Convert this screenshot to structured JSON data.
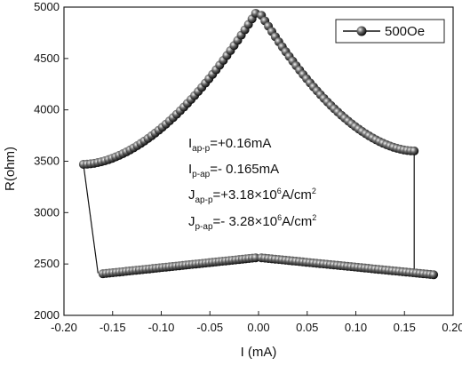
{
  "chart_data": {
    "type": "scatter",
    "xlabel": "I (mA)",
    "ylabel": "R(ohm)",
    "xlim": [
      -0.2,
      0.2
    ],
    "ylim": [
      2000,
      5000
    ],
    "xticks": [
      "-0.20",
      "-0.15",
      "-0.10",
      "-0.05",
      "0.00",
      "0.05",
      "0.10",
      "0.15",
      "0.20"
    ],
    "yticks": [
      "2000",
      "2500",
      "3000",
      "3500",
      "4000",
      "4500",
      "5000"
    ],
    "legend": {
      "placement": "top-right",
      "entries": [
        "500Oe"
      ]
    },
    "series": [
      {
        "name": "500Oe",
        "color": "#111111",
        "high_branch": {
          "left": {
            "x_from": -0.18,
            "x_to": -0.003,
            "y_from": 3470,
            "y_to": 4940
          },
          "right": {
            "x_from": 0.003,
            "x_to": 0.16,
            "y_from": 4920,
            "y_to": 3600
          }
        },
        "low_branch": {
          "left": {
            "x_from": -0.16,
            "x_to": -0.003,
            "y_from": 2405,
            "y_to": 2560
          },
          "right": {
            "x_from": 0.003,
            "x_to": 0.18,
            "y_from": 2560,
            "y_to": 2395
          }
        },
        "switch_lines": [
          {
            "x1": -0.18,
            "y1": 3470,
            "x2": -0.165,
            "y2": 2410
          },
          {
            "x1": 0.16,
            "y1": 3600,
            "x2": 0.16,
            "y2": 2410
          }
        ]
      }
    ],
    "annotations": [
      {
        "main": "I",
        "sub": "ap-p",
        "text": "=+0.16mA",
        "sup": "",
        "tail": ""
      },
      {
        "main": "I",
        "sub": "p-ap",
        "text": "=- 0.165mA",
        "sup": "",
        "tail": ""
      },
      {
        "main": "J",
        "sub": "ap-p",
        "text": "=+3.18×10",
        "sup": "6",
        "tail": "A/cm",
        "sup2": "2"
      },
      {
        "main": "J",
        "sub": "p-ap",
        "text": "=- 3.28×10",
        "sup": "6",
        "tail": "A/cm",
        "sup2": "2"
      }
    ]
  }
}
